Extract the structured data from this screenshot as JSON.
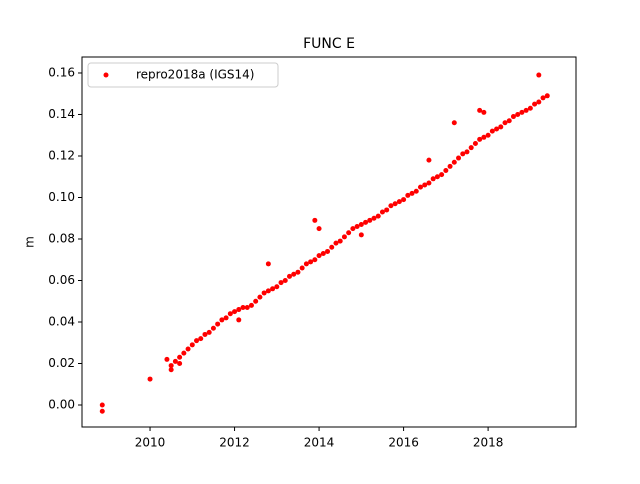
{
  "chart_data": {
    "type": "scatter",
    "title": "FUNC E",
    "ylabel": "m",
    "legend": "upper left",
    "xlim": [
      2008.39,
      2020.08
    ],
    "xticks": [
      2010,
      2012,
      2014,
      2016,
      2018
    ],
    "ylim": [
      -0.0106,
      0.1677
    ],
    "yticks": [
      {
        "value": 0,
        "label": "0.00"
      },
      {
        "value": 0.02,
        "label": "0.02"
      },
      {
        "value": 0.04,
        "label": "0.04"
      },
      {
        "value": 0.06,
        "label": "0.06"
      },
      {
        "value": 0.08,
        "label": "0.08"
      },
      {
        "value": 0.1,
        "label": "0.10"
      },
      {
        "value": 0.12,
        "label": "0.12"
      },
      {
        "value": 0.14,
        "label": "0.14"
      },
      {
        "value": 0.16,
        "label": "0.16"
      }
    ],
    "series": [
      {
        "name": "repro2018a (IGS14)",
        "color": "#ff0000",
        "x": [
          2008.87,
          2008.87,
          2010.0,
          2010.5,
          2010.6,
          2010.7,
          2010.8,
          2010.9,
          2011.0,
          2011.1,
          2011.2,
          2011.3,
          2011.4,
          2011.5,
          2011.6,
          2011.7,
          2011.8,
          2011.9,
          2012.0,
          2012.1,
          2012.2,
          2012.3,
          2012.4,
          2012.5,
          2012.6,
          2012.7,
          2012.8,
          2012.9,
          2013.0,
          2013.1,
          2013.2,
          2013.3,
          2013.4,
          2013.5,
          2013.6,
          2013.7,
          2013.8,
          2013.9,
          2014.0,
          2014.1,
          2014.2,
          2014.3,
          2014.4,
          2014.5,
          2014.6,
          2014.7,
          2014.8,
          2014.9,
          2015.0,
          2015.1,
          2015.2,
          2015.3,
          2015.4,
          2015.5,
          2015.6,
          2015.7,
          2015.8,
          2015.9,
          2016.0,
          2016.1,
          2016.2,
          2016.3,
          2016.4,
          2016.5,
          2016.6,
          2016.7,
          2016.8,
          2016.9,
          2017.0,
          2017.1,
          2017.2,
          2017.3,
          2017.4,
          2017.5,
          2017.6,
          2017.7,
          2017.8,
          2017.9,
          2018.0,
          2018.1,
          2018.2,
          2018.3,
          2018.4,
          2018.5,
          2018.6,
          2018.7,
          2018.8,
          2018.9,
          2019.0,
          2019.1,
          2019.2,
          2019.3,
          2019.4,
          2010.4,
          2010.5,
          2010.7,
          2012.8,
          2013.9,
          2014.0,
          2016.6,
          2017.2,
          2017.8,
          2017.9,
          2019.2,
          2015.0,
          2012.1
        ],
        "values": [
          0.0,
          -0.003,
          0.0125,
          0.019,
          0.021,
          0.023,
          0.025,
          0.027,
          0.029,
          0.031,
          0.032,
          0.034,
          0.035,
          0.037,
          0.039,
          0.041,
          0.042,
          0.044,
          0.045,
          0.046,
          0.047,
          0.047,
          0.048,
          0.05,
          0.052,
          0.054,
          0.055,
          0.056,
          0.057,
          0.059,
          0.06,
          0.062,
          0.063,
          0.064,
          0.066,
          0.068,
          0.069,
          0.07,
          0.072,
          0.073,
          0.074,
          0.076,
          0.078,
          0.079,
          0.081,
          0.083,
          0.085,
          0.086,
          0.087,
          0.088,
          0.089,
          0.09,
          0.091,
          0.093,
          0.094,
          0.096,
          0.097,
          0.098,
          0.099,
          0.101,
          0.102,
          0.103,
          0.105,
          0.106,
          0.107,
          0.109,
          0.11,
          0.111,
          0.113,
          0.115,
          0.117,
          0.119,
          0.121,
          0.122,
          0.124,
          0.126,
          0.128,
          0.129,
          0.13,
          0.132,
          0.133,
          0.134,
          0.136,
          0.137,
          0.139,
          0.14,
          0.141,
          0.142,
          0.143,
          0.145,
          0.146,
          0.148,
          0.149,
          0.022,
          0.017,
          0.02,
          0.068,
          0.089,
          0.085,
          0.118,
          0.136,
          0.142,
          0.141,
          0.159,
          0.082,
          0.041
        ]
      }
    ]
  }
}
